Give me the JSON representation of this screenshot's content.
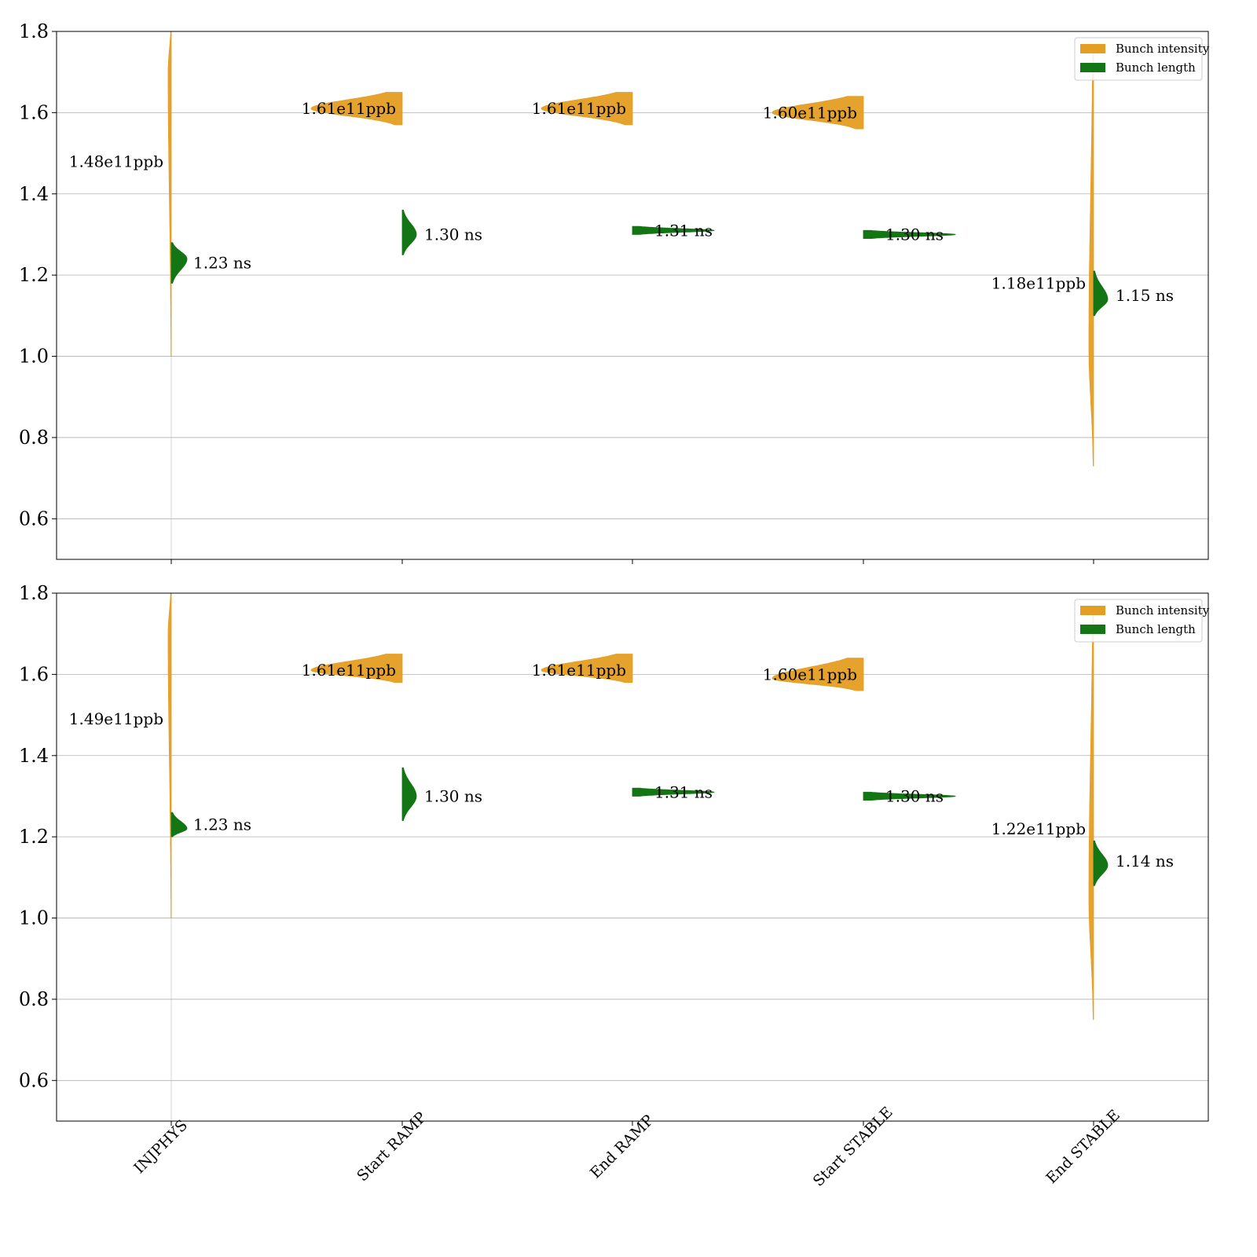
{
  "colors": {
    "intensity": "#e49e23",
    "length": "#137513",
    "grid": "#b0b0b0",
    "frame": "#000000"
  },
  "legend": {
    "placement": "top-right",
    "items": [
      "Bunch intensity",
      "Bunch length"
    ]
  },
  "chart_data": [
    {
      "type": "violin",
      "categories": [
        "INJPHYS",
        "Start RAMP",
        "End RAMP",
        "Start STABLE",
        "End STABLE"
      ],
      "ylim": [
        0.5,
        1.8
      ],
      "yticks": [
        "0.6",
        "0.8",
        "1.0",
        "1.2",
        "1.4",
        "1.6",
        "1.8"
      ],
      "grid": true,
      "series": [
        {
          "name": "Bunch intensity",
          "side": "left",
          "medians": [
            1.48,
            1.61,
            1.61,
            1.6,
            1.18
          ],
          "ranges": [
            [
              1.0,
              1.8
            ],
            [
              1.57,
              1.65
            ],
            [
              1.57,
              1.65
            ],
            [
              1.56,
              1.64
            ],
            [
              0.73,
              1.75
            ]
          ],
          "modes": [
            1.7,
            1.61,
            1.61,
            1.6,
            1.02
          ],
          "labels": [
            "1.48e11ppb",
            "1.61e11ppb",
            "1.61e11ppb",
            "1.60e11ppb",
            "1.18e11ppb"
          ]
        },
        {
          "name": "Bunch length",
          "side": "right",
          "medians": [
            1.23,
            1.3,
            1.31,
            1.3,
            1.15
          ],
          "ranges": [
            [
              1.18,
              1.28
            ],
            [
              1.25,
              1.36
            ],
            [
              1.3,
              1.32
            ],
            [
              1.29,
              1.31
            ],
            [
              1.1,
              1.21
            ]
          ],
          "modes": [
            1.24,
            1.3,
            1.31,
            1.3,
            1.14
          ],
          "labels": [
            "1.23 ns",
            "1.30 ns",
            "1.31 ns",
            "1.30 ns",
            "1.15 ns"
          ]
        }
      ]
    },
    {
      "type": "violin",
      "categories": [
        "INJPHYS",
        "Start RAMP",
        "End RAMP",
        "Start STABLE",
        "End STABLE"
      ],
      "ylim": [
        0.5,
        1.8
      ],
      "yticks": [
        "0.6",
        "0.8",
        "1.0",
        "1.2",
        "1.4",
        "1.6",
        "1.8"
      ],
      "grid": true,
      "series": [
        {
          "name": "Bunch intensity",
          "side": "left",
          "medians": [
            1.49,
            1.61,
            1.61,
            1.6,
            1.22
          ],
          "ranges": [
            [
              1.0,
              1.8
            ],
            [
              1.58,
              1.65
            ],
            [
              1.58,
              1.65
            ],
            [
              1.56,
              1.64
            ],
            [
              0.75,
              1.75
            ]
          ],
          "modes": [
            1.7,
            1.61,
            1.61,
            1.59,
            1.05
          ],
          "labels": [
            "1.49e11ppb",
            "1.61e11ppb",
            "1.61e11ppb",
            "1.60e11ppb",
            "1.22e11ppb"
          ]
        },
        {
          "name": "Bunch length",
          "side": "right",
          "medians": [
            1.23,
            1.3,
            1.31,
            1.3,
            1.14
          ],
          "ranges": [
            [
              1.2,
              1.26
            ],
            [
              1.24,
              1.37
            ],
            [
              1.3,
              1.32
            ],
            [
              1.29,
              1.31
            ],
            [
              1.08,
              1.19
            ]
          ],
          "modes": [
            1.22,
            1.3,
            1.31,
            1.3,
            1.13
          ],
          "labels": [
            "1.23 ns",
            "1.30 ns",
            "1.31 ns",
            "1.30 ns",
            "1.14 ns"
          ]
        }
      ]
    }
  ]
}
